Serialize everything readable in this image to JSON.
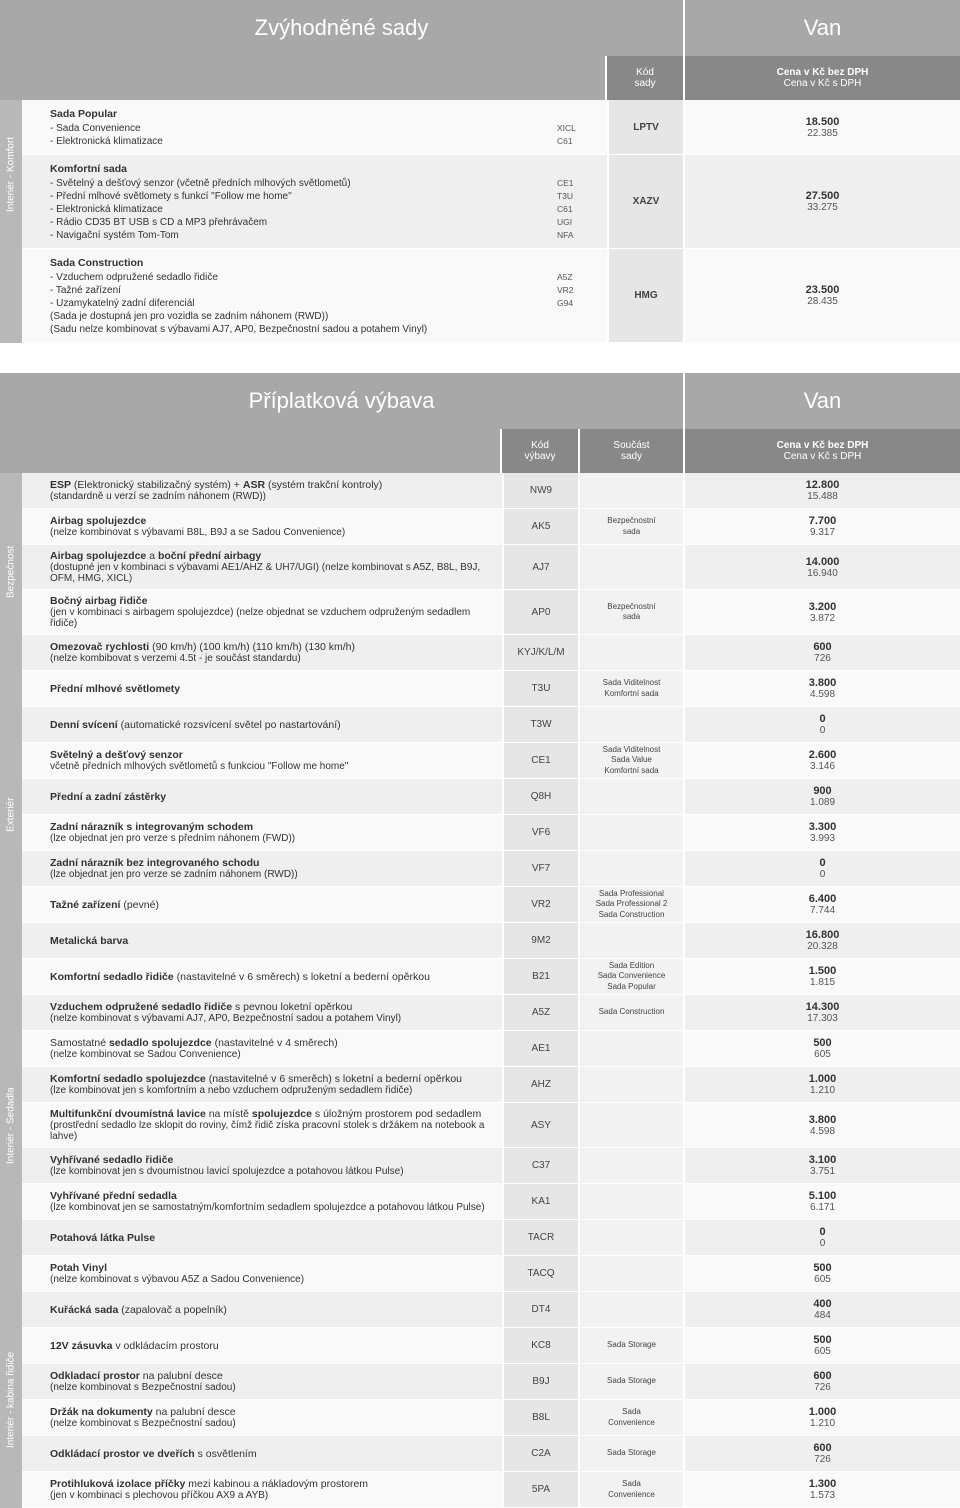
{
  "table1": {
    "title": "Zvýhodněné sady",
    "van": "Van",
    "sub_code": [
      "Kód",
      "sady"
    ],
    "sub_price_ex": "Cena v Kč bez DPH",
    "sub_price_inc": "Cena v Kč s DPH",
    "sections": [
      {
        "tab": "Interiér - Komfort",
        "groups": [
          {
            "title": "Sada Popular",
            "lines": [
              {
                "t": "- Sada Convenience",
                "c": "XICL"
              },
              {
                "t": "- Elektronická klimatizace",
                "c": "C61"
              }
            ],
            "code": "LPTV",
            "ex": "18.500",
            "inc": "22.385",
            "bg": "alt"
          },
          {
            "title": "Komfortní sada",
            "lines": [
              {
                "t": "- Světelný a dešťový senzor (včetně předních mlhových světlometů)",
                "c": "CE1"
              },
              {
                "t": "- Přední mlhové světlomety s funkcí \"Follow me home\"",
                "c": "T3U"
              },
              {
                "t": "- Elektronická klimatizace",
                "c": "C61"
              },
              {
                "t": "- Rádio CD35 BT USB s CD a MP3 přehrávačem",
                "c": "UGI"
              },
              {
                "t": "- Navigační systém Tom-Tom",
                "c": "NFA"
              }
            ],
            "code": "XAZV",
            "ex": "27.500",
            "inc": "33.275",
            "bg": "gray"
          }
        ]
      },
      {
        "tab": "",
        "groups": [
          {
            "title": "Sada Construction",
            "lines": [
              {
                "t": "- Vzduchem odpružené sedadlo řidiče",
                "c": "A5Z"
              },
              {
                "t": "- Tažné zařízení",
                "c": "VR2"
              },
              {
                "t": "- Uzamykatelný zadní diferenciál",
                "c": "G94"
              }
            ],
            "notes": [
              "(Sada je dostupná jen pro vozidla se zadním náhonem (RWD))",
              "(Sadu nelze kombinovat s výbavami AJ7, AP0, Bezpečnostní sadou a potahem Vinyl)"
            ],
            "code": "HMG",
            "ex": "23.500",
            "inc": "28.435",
            "bg": "alt"
          }
        ]
      }
    ]
  },
  "table2": {
    "title": "Příplatková výbava",
    "van": "Van",
    "sub_code": [
      "Kód",
      "výbavy"
    ],
    "sub_part": [
      "Součást",
      "sady"
    ],
    "sub_price_ex": "Cena v Kč bez DPH",
    "sub_price_inc": "Cena v Kč s DPH",
    "sections": [
      {
        "tab": "Bezpečnost",
        "rows": [
          {
            "main": "<b>ESP</b> (Elektronický stabilizačný systém) + <b>ASR</b> (systém trakční kontroly)",
            "sub": "(standardně u verzí se zadním náhonem (RWD))",
            "code": "NW9",
            "part": "",
            "ex": "12.800",
            "inc": "15.488",
            "bg": "gray"
          },
          {
            "main": "<b>Airbag spolujezdce</b>",
            "sub": "(nelze kombinovat s výbavami B8L, B9J a se Sadou Convenience)",
            "code": "AK5",
            "part": "Bezpečnostní\nsada",
            "ex": "7.700",
            "inc": "9.317",
            "bg": "alt"
          },
          {
            "main": "<b>Airbag spolujezdce</b> a <b>boční přední airbagy</b>",
            "sub": "(dostupné jen v kombinaci s výbavami AE1/AHZ & UH7/UGI) (nelze kombinovat s A5Z, B8L, B9J, OFM, HMG, XICL)",
            "code": "AJ7",
            "part": "",
            "ex": "14.000",
            "inc": "16.940",
            "bg": "gray"
          },
          {
            "main": "<b>Bočný airbag řidiče</b>",
            "sub": "(jen v kombinaci s airbagem spolujezdce) (nelze objednat se vzduchem odpruženým sedadlem řidiče)",
            "code": "AP0",
            "part": "Bezpečnostní\nsada",
            "ex": "3.200",
            "inc": "3.872",
            "bg": "alt"
          },
          {
            "main": "<b>Omezovač rychlosti</b> (90 km/h) (100 km/h) (110 km/h) (130 km/h)",
            "sub": "(nelze kombibovat s verzemi 4.5t - je součást standardu)",
            "code": "KYJ/K/L/M",
            "part": "",
            "ex": "600",
            "inc": "726",
            "bg": "gray"
          }
        ]
      },
      {
        "tab": "Exteriér",
        "rows": [
          {
            "main": "<b>Přední mlhové světlomety</b>",
            "sub": "",
            "code": "T3U",
            "part": "Sada Viditelnost\nKomfortní sada",
            "ex": "3.800",
            "inc": "4.598",
            "bg": "alt"
          },
          {
            "main": "<b>Denní svícení</b> (automatické rozsvícení světel po nastartování)",
            "sub": "",
            "code": "T3W",
            "part": "",
            "ex": "0",
            "inc": "0",
            "bg": "gray"
          },
          {
            "main": "<b>Světelný a dešťový senzor</b>",
            "sub": "včetně předních mlhových světlometů s funkciou \"Follow me home\"",
            "code": "CE1",
            "part": "Sada Viditelnost\nSada Value\nKomfortní sada",
            "ex": "2.600",
            "inc": "3.146",
            "bg": "alt"
          },
          {
            "main": "<b>Přední a zadní zástěrky</b>",
            "sub": "",
            "code": "Q8H",
            "part": "",
            "ex": "900",
            "inc": "1.089",
            "bg": "gray"
          },
          {
            "main": "<b>Zadní nárazník s integrovaným schodem</b>",
            "sub": "(lze objednat jen pro verze s předním náhonem (FWD))",
            "code": "VF6",
            "part": "",
            "ex": "3.300",
            "inc": "3.993",
            "bg": "alt"
          },
          {
            "main": "<b>Zadní nárazník bez integrovaného schodu</b>",
            "sub": "(lze objednat jen pro verze se zadním náhonem (RWD))",
            "code": "VF7",
            "part": "",
            "ex": "0",
            "inc": "0",
            "bg": "gray"
          },
          {
            "main": "<b>Tažné zařízení</b> (pevné)",
            "sub": "",
            "code": "VR2",
            "part": "Sada Professional\nSada Professional 2\nSada Construction",
            "ex": "6.400",
            "inc": "7.744",
            "bg": "alt"
          },
          {
            "main": "<b>Metalická barva</b>",
            "sub": "",
            "code": "9M2",
            "part": "",
            "ex": "16.800",
            "inc": "20.328",
            "bg": "gray"
          }
        ]
      },
      {
        "tab": "Interiér - Sedadla",
        "rows": [
          {
            "main": "<b>Komfortní sedadlo řidiče</b> (nastavitelné v 6 směrech) s loketní a bederní opěrkou",
            "sub": "",
            "code": "B21",
            "part": "Sada Edition\nSada Convenience\nSada Popular",
            "ex": "1.500",
            "inc": "1.815",
            "bg": "alt"
          },
          {
            "main": "<b>Vzduchem odpružené sedadlo řidiče</b> s pevnou loketní opěrkou",
            "sub": "(nelze kombinovat s výbavami AJ7, AP0, Bezpečnostní sadou a potahem Vinyl)",
            "code": "A5Z",
            "part": "Sada Construction",
            "ex": "14.300",
            "inc": "17.303",
            "bg": "gray"
          },
          {
            "main": "Samostatné <b>sedadlo spolujezdce</b> (nastavitelné v 4 směrech)",
            "sub": "(nelze kombinovat se Sadou Convenience)",
            "code": "AE1",
            "part": "",
            "ex": "500",
            "inc": "605",
            "bg": "alt"
          },
          {
            "main": "<b>Komfortní sedadlo spolujezdce</b> (nastavitelné v 6 smerěch) s loketní a bederní opěrkou",
            "sub": "(lze kombinovat jen s komfortním a nebo vzduchem odpruženým sedadlem řidiče)",
            "code": "AHZ",
            "part": "",
            "ex": "1.000",
            "inc": "1.210",
            "bg": "gray"
          },
          {
            "main": "<b>Multifunkční dvoumístná lavice</b> na místě <b>spolujezdce</b> s úložným prostorem pod sedadlem",
            "sub": "(prostřední sedadlo lze sklopit do roviny, čímž řidič získa pracovní stolek s držákem na notebook a lahve)",
            "code": "ASY",
            "part": "",
            "ex": "3.800",
            "inc": "4.598",
            "bg": "alt"
          },
          {
            "main": "<b>Vyhřívané sedadlo řidiče</b>",
            "sub": "(lze kombinovat jen s dvoumístnou lavicí spolujezdce a potahovou látkou Pulse)",
            "code": "C37",
            "part": "",
            "ex": "3.100",
            "inc": "3.751",
            "bg": "gray"
          },
          {
            "main": "<b>Vyhřívané přední sedadla</b>",
            "sub": "(lze kombinovat jen se samostatným/komfortním sedadlem spolujezdce a potahovou látkou Pulse)",
            "code": "KA1",
            "part": "",
            "ex": "5.100",
            "inc": "6.171",
            "bg": "alt"
          },
          {
            "main": "<b>Potahová látka Pulse</b>",
            "sub": "",
            "code": "TACR",
            "part": "",
            "ex": "0",
            "inc": "0",
            "bg": "gray"
          },
          {
            "main": "<b>Potah Vinyl</b>",
            "sub": "(nelze kombinovat s výbavou A5Z a Sadou Convenience)",
            "code": "TACQ",
            "part": "",
            "ex": "500",
            "inc": "605",
            "bg": "alt"
          }
        ]
      },
      {
        "tab": "Interiér - kabina řidiče",
        "rows": [
          {
            "main": "<b>Kuřácká sada</b> (zapalovač a popelník)",
            "sub": "",
            "code": "DT4",
            "part": "",
            "ex": "400",
            "inc": "484",
            "bg": "gray"
          },
          {
            "main": "<b>12V zásuvka</b> v odkládacím prostoru",
            "sub": "",
            "code": "KC8",
            "part": "Sada Storage",
            "ex": "500",
            "inc": "605",
            "bg": "alt"
          },
          {
            "main": "<b>Odkladací prostor</b> na palubní desce",
            "sub": "(nelze kombinovat s Bezpečnostní sadou)",
            "code": "B9J",
            "part": "Sada Storage",
            "ex": "600",
            "inc": "726",
            "bg": "gray"
          },
          {
            "main": "<b>Držák na dokumenty</b> na palubní desce",
            "sub": "(nelze kombinovat s Bezpečnostní sadou)",
            "code": "B8L",
            "part": "Sada\nConvenience",
            "ex": "1.000",
            "inc": "1.210",
            "bg": "alt"
          },
          {
            "main": "<b>Odkládací prostor ve dveřích</b> s osvětlením",
            "sub": "",
            "code": "C2A",
            "part": "Sada Storage",
            "ex": "600",
            "inc": "726",
            "bg": "gray"
          },
          {
            "main": "<b>Protihluková izolace příčky</b> mezi kabinou a nákladovým prostorem",
            "sub": "(jen v kombinaci s plechovou příčkou AX9 a AYB)",
            "code": "5PA",
            "part": "Sada\nConvenience",
            "ex": "1.300",
            "inc": "1.573",
            "bg": "alt"
          }
        ]
      }
    ]
  }
}
